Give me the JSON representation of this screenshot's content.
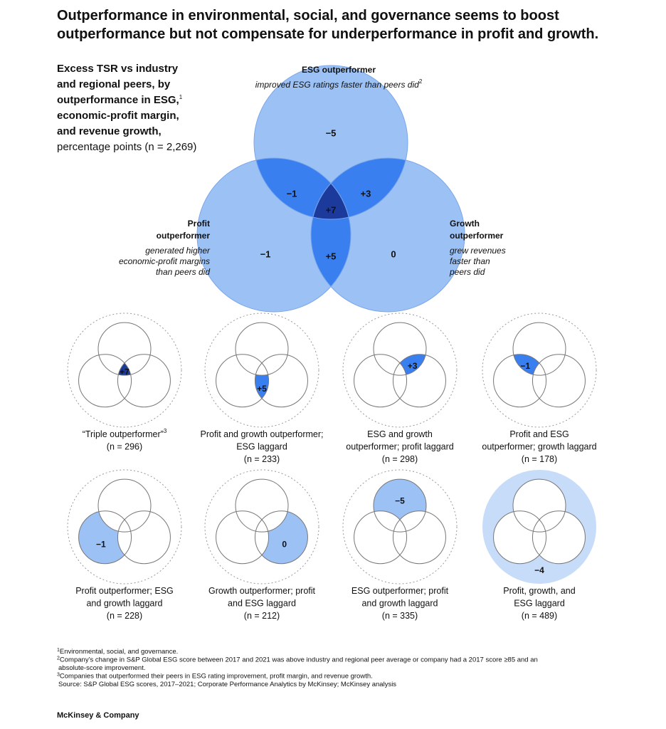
{
  "title": [
    "Outperformance in environmental, social, and governance seems to boost",
    "outperformance but not compensate for underperformance in profit and growth."
  ],
  "heading": {
    "bold_lines": [
      "Excess TSR vs industry",
      "and regional peers, by",
      "outperformance in ESG,",
      "economic-profit margin,",
      "and revenue growth,"
    ],
    "bold_note": "1",
    "unit": "percentage points (n = 2,269)"
  },
  "main_venn": {
    "esg": {
      "label": [
        "ESG outperformer"
      ],
      "description": [
        "improved ESG ratings faster than peers did"
      ],
      "note": "2"
    },
    "profit": {
      "label": [
        "Profit",
        "outperformer"
      ],
      "description": [
        "generated higher",
        "economic-profit margins",
        "than peers did"
      ]
    },
    "growth": {
      "label": [
        "Growth",
        "outperformer"
      ],
      "description": [
        "grew revenues",
        "faster than",
        "peers did"
      ]
    },
    "regions": {
      "e": "−5",
      "ep": "−1",
      "eg": "+3",
      "epg": "+7",
      "pg": "+5",
      "p": "−1",
      "g": "0"
    }
  },
  "panels": [
    {
      "region": "epg",
      "value": "+7",
      "caption": [
        "“Triple outperformer”"
      ],
      "note": "3",
      "n": "(n = 296)"
    },
    {
      "region": "pg",
      "value": "+5",
      "caption": [
        "Profit and growth outperformer;",
        "ESG laggard"
      ],
      "n": "(n = 233)"
    },
    {
      "region": "eg",
      "value": "+3",
      "caption": [
        "ESG and growth",
        "outperformer; profit laggard"
      ],
      "n": "(n = 298)"
    },
    {
      "region": "ep",
      "value": "−1",
      "caption": [
        "Profit and ESG",
        "outperformer; growth laggard"
      ],
      "n": "(n = 178)"
    },
    {
      "region": "p",
      "value": "−1",
      "caption": [
        "Profit outperformer; ESG",
        "and growth laggard"
      ],
      "n": "(n = 228)"
    },
    {
      "region": "g",
      "value": "0",
      "caption": [
        "Growth outperformer; profit",
        "and ESG laggard"
      ],
      "n": "(n = 212)"
    },
    {
      "region": "e",
      "value": "−5",
      "caption": [
        "ESG outperformer; profit",
        "and growth laggard"
      ],
      "n": "(n = 335)"
    },
    {
      "region": "none",
      "value": "−4",
      "caption": [
        "Profit, growth, and",
        "ESG laggard"
      ],
      "n": "(n = 489)"
    }
  ],
  "footnotes": [
    {
      "mark": "1",
      "lines": [
        "Environmental, social, and governance."
      ]
    },
    {
      "mark": "2",
      "lines": [
        "Company’s change in S&P Global ESG score between 2017 and 2021 was above industry and regional peer average or company had a 2017 score ≥85 and an",
        "absolute-score improvement."
      ]
    },
    {
      "mark": "3",
      "lines": [
        "Companies that outperformed their peers in ESG rating improvement, profit margin, and revenue growth."
      ]
    }
  ],
  "source": "Source: S&P Global ESG scores, 2017–2021; Corporate Performance Analytics by McKinsey; McKinsey analysis",
  "brand": "McKinsey & Company"
}
